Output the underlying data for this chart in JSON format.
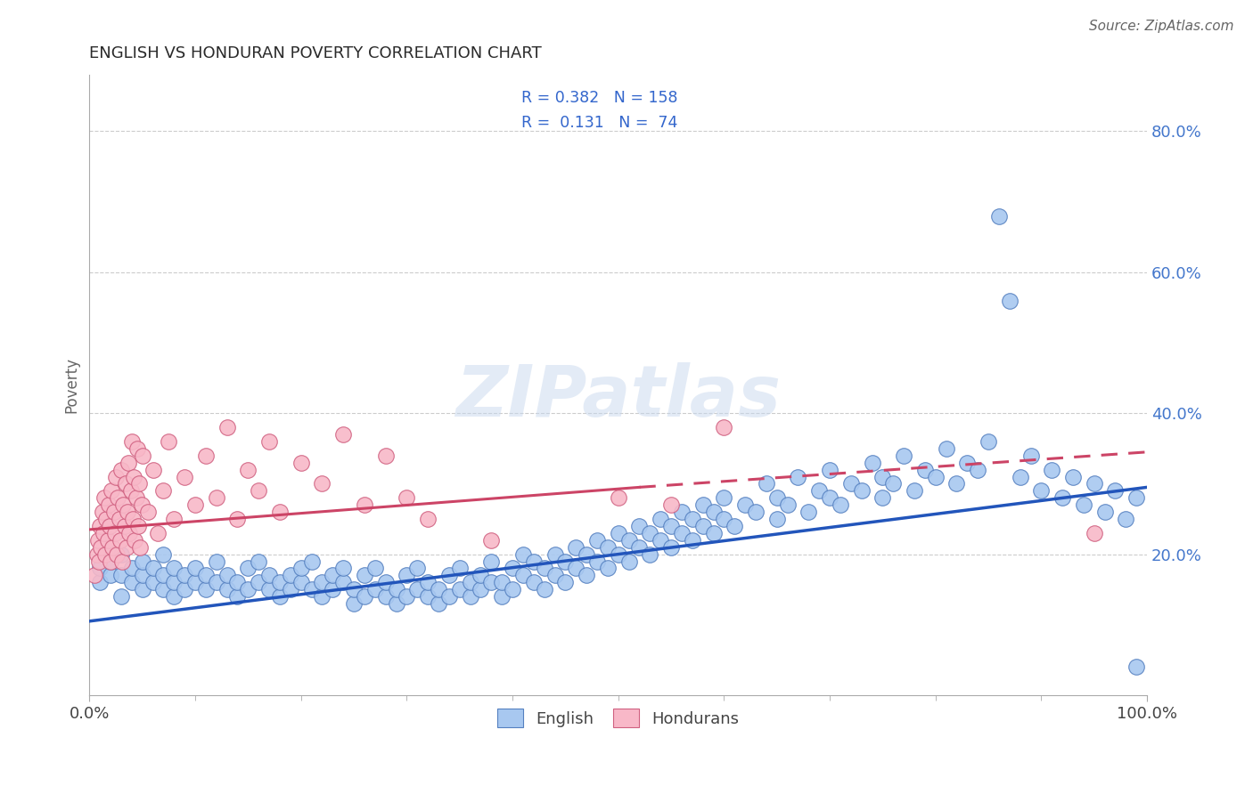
{
  "title": "ENGLISH VS HONDURAN POVERTY CORRELATION CHART",
  "source": "Source: ZipAtlas.com",
  "ylabel": "Poverty",
  "x_min": 0.0,
  "x_max": 1.0,
  "y_min": 0.0,
  "y_max": 0.88,
  "x_ticks": [
    0.0,
    1.0
  ],
  "x_tick_labels": [
    "0.0%",
    "100.0%"
  ],
  "y_ticks": [
    0.2,
    0.4,
    0.6,
    0.8
  ],
  "y_tick_labels": [
    "20.0%",
    "40.0%",
    "60.0%",
    "80.0%"
  ],
  "english_color": "#A8C8F0",
  "english_edge_color": "#5580C0",
  "honduran_color": "#F8B8C8",
  "honduran_edge_color": "#D06080",
  "english_line_color": "#2255BB",
  "honduran_line_color": "#CC4466",
  "axis_tick_color": "#4477CC",
  "grid_color": "#CCCCCC",
  "title_color": "#2a2a2a",
  "source_color": "#666666",
  "watermark": "ZIPatlas",
  "eng_line_x0": 0.0,
  "eng_line_y0": 0.105,
  "eng_line_x1": 1.0,
  "eng_line_y1": 0.295,
  "hon_line_solid_x0": 0.0,
  "hon_line_solid_y0": 0.235,
  "hon_line_solid_x1": 0.52,
  "hon_line_solid_y1": 0.295,
  "hon_line_dash_x0": 0.52,
  "hon_line_dash_y0": 0.295,
  "hon_line_dash_x1": 1.0,
  "hon_line_dash_y1": 0.345,
  "english_scatter": [
    [
      0.01,
      0.16
    ],
    [
      0.01,
      0.18
    ],
    [
      0.02,
      0.17
    ],
    [
      0.02,
      0.19
    ],
    [
      0.03,
      0.14
    ],
    [
      0.03,
      0.17
    ],
    [
      0.03,
      0.2
    ],
    [
      0.04,
      0.16
    ],
    [
      0.04,
      0.18
    ],
    [
      0.05,
      0.15
    ],
    [
      0.05,
      0.17
    ],
    [
      0.05,
      0.19
    ],
    [
      0.06,
      0.16
    ],
    [
      0.06,
      0.18
    ],
    [
      0.07,
      0.15
    ],
    [
      0.07,
      0.17
    ],
    [
      0.07,
      0.2
    ],
    [
      0.08,
      0.14
    ],
    [
      0.08,
      0.16
    ],
    [
      0.08,
      0.18
    ],
    [
      0.09,
      0.15
    ],
    [
      0.09,
      0.17
    ],
    [
      0.1,
      0.16
    ],
    [
      0.1,
      0.18
    ],
    [
      0.11,
      0.15
    ],
    [
      0.11,
      0.17
    ],
    [
      0.12,
      0.16
    ],
    [
      0.12,
      0.19
    ],
    [
      0.13,
      0.15
    ],
    [
      0.13,
      0.17
    ],
    [
      0.14,
      0.14
    ],
    [
      0.14,
      0.16
    ],
    [
      0.15,
      0.15
    ],
    [
      0.15,
      0.18
    ],
    [
      0.16,
      0.16
    ],
    [
      0.16,
      0.19
    ],
    [
      0.17,
      0.15
    ],
    [
      0.17,
      0.17
    ],
    [
      0.18,
      0.14
    ],
    [
      0.18,
      0.16
    ],
    [
      0.19,
      0.15
    ],
    [
      0.19,
      0.17
    ],
    [
      0.2,
      0.16
    ],
    [
      0.2,
      0.18
    ],
    [
      0.21,
      0.15
    ],
    [
      0.21,
      0.19
    ],
    [
      0.22,
      0.14
    ],
    [
      0.22,
      0.16
    ],
    [
      0.23,
      0.15
    ],
    [
      0.23,
      0.17
    ],
    [
      0.24,
      0.16
    ],
    [
      0.24,
      0.18
    ],
    [
      0.25,
      0.13
    ],
    [
      0.25,
      0.15
    ],
    [
      0.26,
      0.14
    ],
    [
      0.26,
      0.17
    ],
    [
      0.27,
      0.15
    ],
    [
      0.27,
      0.18
    ],
    [
      0.28,
      0.14
    ],
    [
      0.28,
      0.16
    ],
    [
      0.29,
      0.13
    ],
    [
      0.29,
      0.15
    ],
    [
      0.3,
      0.14
    ],
    [
      0.3,
      0.17
    ],
    [
      0.31,
      0.15
    ],
    [
      0.31,
      0.18
    ],
    [
      0.32,
      0.14
    ],
    [
      0.32,
      0.16
    ],
    [
      0.33,
      0.13
    ],
    [
      0.33,
      0.15
    ],
    [
      0.34,
      0.14
    ],
    [
      0.34,
      0.17
    ],
    [
      0.35,
      0.15
    ],
    [
      0.35,
      0.18
    ],
    [
      0.36,
      0.14
    ],
    [
      0.36,
      0.16
    ],
    [
      0.37,
      0.15
    ],
    [
      0.37,
      0.17
    ],
    [
      0.38,
      0.16
    ],
    [
      0.38,
      0.19
    ],
    [
      0.39,
      0.14
    ],
    [
      0.39,
      0.16
    ],
    [
      0.4,
      0.15
    ],
    [
      0.4,
      0.18
    ],
    [
      0.41,
      0.17
    ],
    [
      0.41,
      0.2
    ],
    [
      0.42,
      0.16
    ],
    [
      0.42,
      0.19
    ],
    [
      0.43,
      0.15
    ],
    [
      0.43,
      0.18
    ],
    [
      0.44,
      0.17
    ],
    [
      0.44,
      0.2
    ],
    [
      0.45,
      0.16
    ],
    [
      0.45,
      0.19
    ],
    [
      0.46,
      0.18
    ],
    [
      0.46,
      0.21
    ],
    [
      0.47,
      0.17
    ],
    [
      0.47,
      0.2
    ],
    [
      0.48,
      0.19
    ],
    [
      0.48,
      0.22
    ],
    [
      0.49,
      0.18
    ],
    [
      0.49,
      0.21
    ],
    [
      0.5,
      0.2
    ],
    [
      0.5,
      0.23
    ],
    [
      0.51,
      0.19
    ],
    [
      0.51,
      0.22
    ],
    [
      0.52,
      0.21
    ],
    [
      0.52,
      0.24
    ],
    [
      0.53,
      0.2
    ],
    [
      0.53,
      0.23
    ],
    [
      0.54,
      0.22
    ],
    [
      0.54,
      0.25
    ],
    [
      0.55,
      0.21
    ],
    [
      0.55,
      0.24
    ],
    [
      0.56,
      0.23
    ],
    [
      0.56,
      0.26
    ],
    [
      0.57,
      0.22
    ],
    [
      0.57,
      0.25
    ],
    [
      0.58,
      0.24
    ],
    [
      0.58,
      0.27
    ],
    [
      0.59,
      0.23
    ],
    [
      0.59,
      0.26
    ],
    [
      0.6,
      0.25
    ],
    [
      0.6,
      0.28
    ],
    [
      0.61,
      0.24
    ],
    [
      0.62,
      0.27
    ],
    [
      0.63,
      0.26
    ],
    [
      0.64,
      0.3
    ],
    [
      0.65,
      0.25
    ],
    [
      0.65,
      0.28
    ],
    [
      0.66,
      0.27
    ],
    [
      0.67,
      0.31
    ],
    [
      0.68,
      0.26
    ],
    [
      0.69,
      0.29
    ],
    [
      0.7,
      0.28
    ],
    [
      0.7,
      0.32
    ],
    [
      0.71,
      0.27
    ],
    [
      0.72,
      0.3
    ],
    [
      0.73,
      0.29
    ],
    [
      0.74,
      0.33
    ],
    [
      0.75,
      0.28
    ],
    [
      0.75,
      0.31
    ],
    [
      0.76,
      0.3
    ],
    [
      0.77,
      0.34
    ],
    [
      0.78,
      0.29
    ],
    [
      0.79,
      0.32
    ],
    [
      0.8,
      0.31
    ],
    [
      0.81,
      0.35
    ],
    [
      0.82,
      0.3
    ],
    [
      0.83,
      0.33
    ],
    [
      0.84,
      0.32
    ],
    [
      0.85,
      0.36
    ],
    [
      0.86,
      0.68
    ],
    [
      0.87,
      0.56
    ],
    [
      0.88,
      0.31
    ],
    [
      0.89,
      0.34
    ],
    [
      0.9,
      0.29
    ],
    [
      0.91,
      0.32
    ],
    [
      0.92,
      0.28
    ],
    [
      0.93,
      0.31
    ],
    [
      0.94,
      0.27
    ],
    [
      0.95,
      0.3
    ],
    [
      0.96,
      0.26
    ],
    [
      0.97,
      0.29
    ],
    [
      0.98,
      0.25
    ],
    [
      0.99,
      0.28
    ],
    [
      0.99,
      0.04
    ]
  ],
  "honduran_scatter": [
    [
      0.005,
      0.17
    ],
    [
      0.007,
      0.2
    ],
    [
      0.008,
      0.22
    ],
    [
      0.009,
      0.19
    ],
    [
      0.01,
      0.24
    ],
    [
      0.011,
      0.21
    ],
    [
      0.012,
      0.26
    ],
    [
      0.013,
      0.23
    ],
    [
      0.014,
      0.28
    ],
    [
      0.015,
      0.2
    ],
    [
      0.016,
      0.25
    ],
    [
      0.017,
      0.22
    ],
    [
      0.018,
      0.27
    ],
    [
      0.019,
      0.24
    ],
    [
      0.02,
      0.19
    ],
    [
      0.021,
      0.29
    ],
    [
      0.022,
      0.21
    ],
    [
      0.023,
      0.26
    ],
    [
      0.024,
      0.23
    ],
    [
      0.025,
      0.31
    ],
    [
      0.026,
      0.2
    ],
    [
      0.027,
      0.28
    ],
    [
      0.028,
      0.25
    ],
    [
      0.029,
      0.22
    ],
    [
      0.03,
      0.32
    ],
    [
      0.031,
      0.19
    ],
    [
      0.032,
      0.27
    ],
    [
      0.033,
      0.24
    ],
    [
      0.034,
      0.3
    ],
    [
      0.035,
      0.21
    ],
    [
      0.036,
      0.26
    ],
    [
      0.037,
      0.33
    ],
    [
      0.038,
      0.23
    ],
    [
      0.039,
      0.29
    ],
    [
      0.04,
      0.36
    ],
    [
      0.041,
      0.25
    ],
    [
      0.042,
      0.31
    ],
    [
      0.043,
      0.22
    ],
    [
      0.044,
      0.28
    ],
    [
      0.045,
      0.35
    ],
    [
      0.046,
      0.24
    ],
    [
      0.047,
      0.3
    ],
    [
      0.048,
      0.21
    ],
    [
      0.049,
      0.27
    ],
    [
      0.05,
      0.34
    ],
    [
      0.055,
      0.26
    ],
    [
      0.06,
      0.32
    ],
    [
      0.065,
      0.23
    ],
    [
      0.07,
      0.29
    ],
    [
      0.075,
      0.36
    ],
    [
      0.08,
      0.25
    ],
    [
      0.09,
      0.31
    ],
    [
      0.1,
      0.27
    ],
    [
      0.11,
      0.34
    ],
    [
      0.12,
      0.28
    ],
    [
      0.13,
      0.38
    ],
    [
      0.14,
      0.25
    ],
    [
      0.15,
      0.32
    ],
    [
      0.16,
      0.29
    ],
    [
      0.17,
      0.36
    ],
    [
      0.18,
      0.26
    ],
    [
      0.2,
      0.33
    ],
    [
      0.22,
      0.3
    ],
    [
      0.24,
      0.37
    ],
    [
      0.26,
      0.27
    ],
    [
      0.28,
      0.34
    ],
    [
      0.3,
      0.28
    ],
    [
      0.32,
      0.25
    ],
    [
      0.38,
      0.22
    ],
    [
      0.5,
      0.28
    ],
    [
      0.55,
      0.27
    ],
    [
      0.6,
      0.38
    ],
    [
      0.95,
      0.23
    ]
  ]
}
